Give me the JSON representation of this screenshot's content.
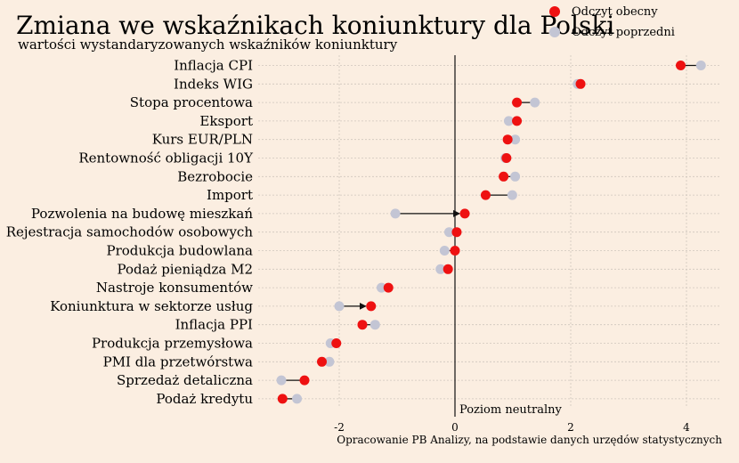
{
  "chart_data": {
    "type": "dumbbell",
    "title": "Zmiana we wskaźnikach koniunktury dla Polski",
    "subtitle": "wartości wystandaryzowanych wskaźników koniunktury",
    "categories": [
      "Inflacja CPI",
      "Indeks WIG",
      "Stopa procentowa",
      "Eksport",
      "Kurs EUR/PLN",
      "Rentowność obligacji 10Y",
      "Bezrobocie",
      "Import",
      "Pozwolenia na budowę mieszkań",
      "Rejestracja samochodów osobowych",
      "Produkcja budowlana",
      "Podaż pieniądza M2",
      "Nastroje konsumentów",
      "Koniunktura w sektorze usług",
      "Inflacja PPI",
      "Produkcja przemysłowa",
      "PMI dla przetwórstwa",
      "Sprzedaż detaliczna",
      "Podaż kredytu"
    ],
    "series": [
      {
        "name": "Odczyt obecny",
        "color": "#ee1111",
        "values": [
          3.9,
          2.17,
          1.07,
          1.07,
          0.91,
          0.89,
          0.84,
          0.53,
          0.17,
          0.03,
          0.0,
          -0.12,
          -1.15,
          -1.45,
          -1.6,
          -2.05,
          -2.3,
          -2.6,
          -2.98
        ]
      },
      {
        "name": "Odczyt poprzedni",
        "color": "#c3c5d4",
        "values": [
          4.25,
          2.12,
          1.38,
          0.93,
          1.04,
          0.87,
          1.04,
          0.99,
          -1.03,
          -0.1,
          -0.18,
          -0.25,
          -1.27,
          -2.0,
          -1.38,
          -2.15,
          -2.17,
          -3.0,
          -2.73
        ]
      }
    ],
    "arrow_rows": [
      "Pozwolenia na budowę mieszkań",
      "Koniunktura w sektorze usług"
    ],
    "x_ticks": [
      -2,
      0,
      2,
      4
    ],
    "x_tick_labels": [
      "-2",
      "0",
      "2",
      "4"
    ],
    "xlim": [
      -3.5,
      4.6
    ],
    "reference_line": {
      "x": 0,
      "label": "Poziom neutralny"
    },
    "legend_position": "top-right",
    "grid": true,
    "source": "Opracowanie PB Analizy, na podstawie danych urzędów statystycznych"
  }
}
